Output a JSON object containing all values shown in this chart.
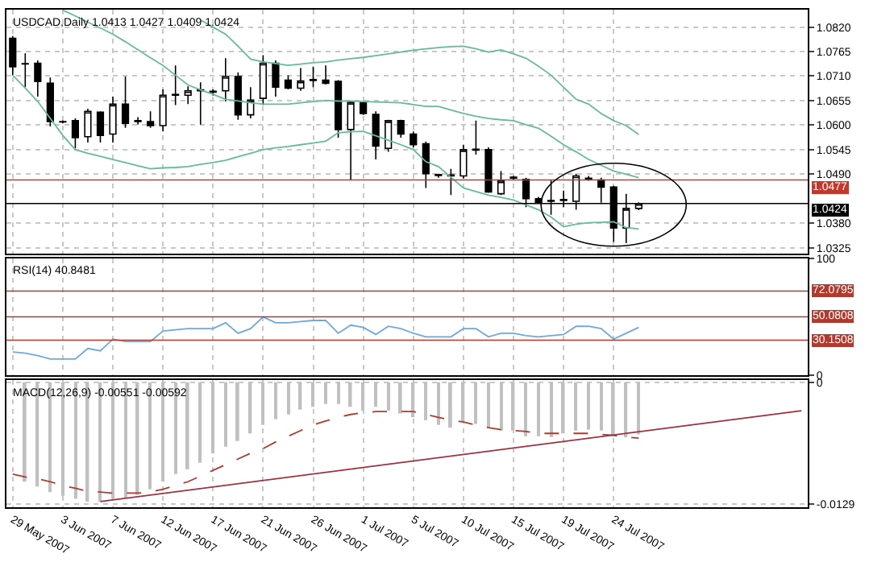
{
  "chart_data": [
    {
      "type": "candlestick",
      "title": "USDCAD,Daily 1.0413 1.0427 1.0409 1.0424",
      "categories": [
        null,
        null,
        null,
        null,
        null,
        null,
        null,
        null,
        null,
        null,
        null,
        null,
        null,
        null,
        null,
        null,
        null,
        null,
        null,
        null,
        null,
        null,
        null,
        null,
        null,
        null,
        null,
        null,
        null,
        null,
        null,
        null,
        null,
        null,
        null,
        null,
        null,
        null,
        null,
        null,
        null,
        null,
        null,
        null,
        null,
        null,
        null,
        null,
        null,
        null,
        null,
        null,
        null,
        null,
        null,
        null,
        null,
        null,
        null,
        null,
        null,
        null,
        null,
        null
      ],
      "ohlc": [
        [
          1.0795,
          1.08,
          1.0712,
          1.0731
        ],
        [
          1.0737,
          1.0761,
          1.0685,
          1.0738
        ],
        [
          1.0739,
          1.0745,
          1.0664,
          1.0698
        ],
        [
          1.0694,
          1.0707,
          1.0597,
          1.0608
        ],
        [
          1.0608,
          1.061,
          1.0604,
          1.0607
        ],
        [
          1.061,
          1.0615,
          1.0548,
          1.0572
        ],
        [
          1.0574,
          1.0637,
          1.0561,
          1.0631
        ],
        [
          1.0629,
          1.0631,
          1.0561,
          1.0577
        ],
        [
          1.058,
          1.0664,
          1.0561,
          1.0647
        ],
        [
          1.0647,
          1.0709,
          1.0594,
          1.0604
        ],
        [
          1.061,
          1.0618,
          1.0601,
          1.0608
        ],
        [
          1.0608,
          1.0631,
          1.0594,
          1.0599
        ],
        [
          1.0599,
          1.068,
          1.0586,
          1.0667
        ],
        [
          1.0667,
          1.0734,
          1.0645,
          1.0669
        ],
        [
          1.0667,
          1.0687,
          1.0647,
          1.0677
        ],
        [
          1.0677,
          1.0696,
          1.0601,
          1.0679
        ],
        [
          1.0674,
          1.068,
          1.0666,
          1.0676
        ],
        [
          1.0677,
          1.075,
          1.0653,
          1.0709
        ],
        [
          1.0709,
          1.0718,
          1.0612,
          1.0623
        ],
        [
          1.0623,
          1.0685,
          1.0615,
          1.0656
        ],
        [
          1.066,
          1.0757,
          1.0645,
          1.0739
        ],
        [
          1.0739,
          1.0745,
          1.0664,
          1.0685
        ],
        [
          1.0701,
          1.0712,
          1.068,
          1.0683
        ],
        [
          1.0683,
          1.0728,
          1.0677,
          1.0699
        ],
        [
          1.07,
          1.0731,
          1.0685,
          1.0702
        ],
        [
          1.0701,
          1.0734,
          1.0691,
          1.0694
        ],
        [
          1.0698,
          1.0701,
          1.0572,
          1.059
        ],
        [
          1.059,
          1.0655,
          1.0478,
          1.0651
        ],
        [
          1.065,
          1.0653,
          1.0623,
          1.0626
        ],
        [
          1.0624,
          1.0631,
          1.0523,
          1.0553
        ],
        [
          1.0548,
          1.0612,
          1.054,
          1.061
        ],
        [
          1.061,
          1.0612,
          1.0572,
          1.058
        ],
        [
          1.058,
          1.0586,
          1.055,
          1.0556
        ],
        [
          1.0558,
          1.0563,
          1.0459,
          1.0491
        ],
        [
          1.0487,
          1.0491,
          1.0482,
          1.0489
        ],
        [
          1.0486,
          1.0502,
          1.0443,
          1.0488
        ],
        [
          1.0486,
          1.0556,
          1.048,
          1.0545
        ],
        [
          1.0546,
          1.061,
          1.0534,
          1.0544
        ],
        [
          1.0545,
          1.055,
          1.0448,
          1.045
        ],
        [
          1.0446,
          1.0497,
          1.0443,
          1.0475
        ],
        [
          1.0481,
          1.0486,
          1.0478,
          1.0483
        ],
        [
          1.0478,
          1.0482,
          1.0416,
          1.0435
        ],
        [
          1.0435,
          1.0439,
          1.0424,
          1.0426
        ],
        [
          1.0431,
          1.0478,
          1.0399,
          1.0429
        ],
        [
          1.0431,
          1.0453,
          1.0416,
          1.0433
        ],
        [
          1.0429,
          1.0491,
          1.041,
          1.0486
        ],
        [
          1.0481,
          1.0486,
          1.0475,
          1.0479
        ],
        [
          1.0477,
          1.0482,
          1.0426,
          1.0461
        ],
        [
          1.0461,
          1.0464,
          1.0338,
          1.0369
        ],
        [
          1.0369,
          1.0446,
          1.0335,
          1.0413
        ],
        [
          1.0413,
          1.0427,
          1.0409,
          1.0424
        ],
        null,
        null,
        null,
        null,
        null,
        null,
        null,
        null,
        null,
        null,
        null,
        null,
        null
      ],
      "series": [
        {
          "type": "line",
          "color": "#66bb99",
          "values": [
            null,
            null,
            null,
            null,
            null,
            null,
            null,
            null,
            null,
            null,
            null,
            null,
            null,
            null,
            null,
            1.0836,
            1.082,
            1.0804,
            1.0777,
            1.0748,
            1.0742,
            1.0738,
            1.0734,
            1.0737,
            1.074,
            1.0742,
            1.0746,
            1.0749,
            1.0752,
            1.0756,
            1.076,
            1.0764,
            1.0768,
            1.0771,
            1.0774,
            1.0776,
            1.0777,
            1.0771,
            1.0764,
            1.0769,
            1.076,
            1.075,
            1.0732,
            1.0712,
            1.0685,
            1.0658,
            1.0647,
            1.0626,
            1.061,
            1.0599,
            1.0579,
            null,
            null,
            null,
            null,
            null,
            null,
            null,
            null,
            null,
            null,
            null,
            null,
            null
          ]
        },
        {
          "type": "line",
          "color": "#66bb99",
          "values": [
            null,
            null,
            null,
            null,
            1.0858,
            1.0845,
            1.0831,
            1.0818,
            1.0804,
            1.0787,
            1.0769,
            1.0751,
            1.0734,
            1.0712,
            1.069,
            1.0679,
            1.0669,
            1.0658,
            1.0654,
            1.065,
            1.0647,
            1.0647,
            1.0647,
            1.065,
            1.0653,
            1.0655,
            1.0654,
            1.0654,
            1.0653,
            1.0652,
            1.0651,
            1.065,
            1.0646,
            1.0642,
            1.0642,
            1.0634,
            1.0626,
            1.062,
            1.0615,
            1.0612,
            1.061,
            1.0601,
            1.0593,
            1.0575,
            1.0556,
            1.054,
            1.0523,
            1.051,
            1.0497,
            1.049,
            1.0482,
            null,
            null,
            null,
            null,
            null,
            null,
            null,
            null,
            null,
            null,
            null,
            null,
            null
          ]
        },
        {
          "type": "line",
          "color": "#66bb99",
          "values": [
            1.0712,
            1.0683,
            1.0653,
            1.0615,
            1.0577,
            1.0545,
            1.0537,
            1.053,
            1.0523,
            1.0516,
            1.0509,
            1.0502,
            1.0504,
            1.0505,
            1.0507,
            1.0512,
            1.0516,
            1.0521,
            1.0529,
            1.0537,
            1.0545,
            1.0549,
            1.0552,
            1.0556,
            1.056,
            1.0564,
            1.0583,
            1.0585,
            1.0586,
            1.0576,
            1.0566,
            1.0556,
            1.0545,
            1.0518,
            1.0507,
            1.0483,
            1.0459,
            1.0451,
            1.0443,
            1.0438,
            1.0432,
            1.0421,
            1.041,
            1.0394,
            1.0372,
            1.0378,
            1.0381,
            1.0382,
            1.0383,
            1.037,
            1.0367,
            null,
            null,
            null,
            null,
            null,
            null,
            null,
            null,
            null,
            null,
            null,
            null,
            null
          ]
        }
      ],
      "ylim": [
        1.0312,
        1.0859
      ],
      "yticks": [
        {
          "value": 1.082,
          "label": "1.0820"
        },
        1.0765,
        {
          "value": 1.071,
          "label": "1.0710"
        },
        1.0655,
        {
          "value": 1.06,
          "label": "1.0600"
        },
        1.0545,
        {
          "value": 1.049,
          "label": "1.0490"
        },
        {
          "value": 1.038,
          "label": "1.0380"
        },
        1.0325
      ],
      "ref_lines": [
        {
          "axis": "y",
          "value": 1.0477,
          "label": "1.0477",
          "color": "#c0392b"
        },
        {
          "axis": "y",
          "value": 1.0424,
          "label": "1.0424",
          "color": "#000000"
        }
      ],
      "grid": true,
      "tick_labels": "y"
    },
    {
      "type": "line",
      "title": "RSI(14) 40.8481",
      "categories": [
        null,
        null,
        null,
        null,
        null,
        null,
        null,
        null,
        null,
        null,
        null,
        null,
        null,
        null,
        null,
        null,
        null,
        null,
        null,
        null,
        null,
        null,
        null,
        null,
        null,
        null,
        null,
        null,
        null,
        null,
        null,
        null,
        null,
        null,
        null,
        null,
        null,
        null,
        null,
        null,
        null,
        null,
        null,
        null,
        null,
        null,
        null,
        null,
        null,
        null,
        null,
        null,
        null,
        null,
        null,
        null,
        null,
        null,
        null,
        null,
        null,
        null,
        null,
        null
      ],
      "series": [
        {
          "color": "#6fa8dc",
          "values": [
            20,
            19,
            17,
            14,
            14,
            14,
            23,
            21,
            31,
            29,
            29,
            29,
            38,
            39,
            40,
            40,
            40,
            45,
            36,
            40,
            50,
            45,
            45,
            46,
            47,
            47,
            36,
            43,
            41,
            35,
            42,
            40,
            36,
            33,
            33,
            33,
            40,
            40,
            33,
            36,
            36,
            34,
            33,
            34,
            35,
            42,
            42,
            40,
            31,
            36,
            41,
            null,
            null,
            null,
            null,
            null,
            null,
            null,
            null,
            null,
            null,
            null,
            null,
            null
          ]
        }
      ],
      "ylim": [
        0,
        100
      ],
      "yticks": [
        0,
        100
      ],
      "ref_lines": [
        {
          "axis": "y",
          "value": 72.0795,
          "label": "72.0795",
          "color": "#b03a2e"
        },
        {
          "axis": "y",
          "value": 50.0808,
          "label": "50.0808",
          "color": "#b03a2e"
        },
        {
          "axis": "y",
          "value": 30.1508,
          "label": "30.1508",
          "color": "#b03a2e"
        }
      ],
      "grid": true,
      "tick_labels": "y"
    },
    {
      "type": "bar",
      "title": "MACD(12,26,9) -0.00551 -0.00592",
      "categories": [
        "29 May 2007",
        null,
        null,
        null,
        "3 Jun 2007",
        null,
        null,
        null,
        "7 Jun 2007",
        null,
        null,
        null,
        "12 Jun 2007",
        null,
        null,
        null,
        "17 Jun 2007",
        null,
        null,
        null,
        "21 Jun 2007",
        null,
        null,
        null,
        "26 Jun 2007",
        null,
        null,
        null,
        "1 Jul 2007",
        null,
        null,
        null,
        "5 Jul 2007",
        null,
        null,
        null,
        "10 Jul 2007",
        null,
        null,
        null,
        "15 Jul 2007",
        null,
        null,
        null,
        "19 Jul 2007",
        null,
        null,
        null,
        "24 Jul 2007",
        null,
        null,
        null,
        null,
        null,
        null,
        null,
        null,
        null,
        null,
        null,
        null,
        null,
        null,
        null
      ],
      "series": [
        {
          "type": "bar",
          "color": "#c0c0c0",
          "values": [
            null,
            -0.0105,
            -0.011,
            -0.0116,
            -0.012,
            -0.0123,
            -0.0126,
            -0.0126,
            -0.0123,
            -0.0122,
            -0.0119,
            -0.0113,
            -0.0105,
            -0.0097,
            -0.0092,
            -0.0085,
            -0.0075,
            -0.0068,
            -0.0062,
            -0.0054,
            -0.0045,
            -0.0039,
            -0.0034,
            -0.0029,
            -0.0026,
            -0.0023,
            -0.0023,
            -0.0026,
            -0.003,
            -0.0026,
            -0.003,
            -0.0033,
            -0.0037,
            -0.004,
            -0.0045,
            -0.0048,
            -0.0042,
            -0.0044,
            -0.0048,
            -0.0051,
            -0.0051,
            -0.0057,
            -0.0057,
            -0.0058,
            -0.0054,
            -0.0051,
            -0.005,
            -0.0051,
            -0.0057,
            -0.0058,
            -0.0055,
            null,
            null,
            null,
            null,
            null,
            null,
            null,
            null,
            null,
            null,
            null,
            null,
            null
          ]
        },
        {
          "type": "line",
          "color": "#b03a2e",
          "line_style": "dashed",
          "values": [
            -0.0097,
            -0.01,
            -0.0102,
            -0.0105,
            -0.0109,
            -0.0112,
            -0.0115,
            -0.0116,
            -0.0117,
            -0.0117,
            -0.0117,
            -0.0116,
            -0.0113,
            -0.0109,
            -0.0105,
            -0.0099,
            -0.0093,
            -0.0087,
            -0.0081,
            -0.0075,
            -0.007,
            -0.0063,
            -0.0057,
            -0.0051,
            -0.0045,
            -0.0041,
            -0.0037,
            -0.0034,
            -0.0032,
            -0.0031,
            -0.0031,
            -0.0031,
            -0.0031,
            -0.0034,
            -0.0037,
            -0.004,
            -0.0042,
            -0.0045,
            -0.0048,
            -0.005,
            -0.0051,
            -0.0052,
            -0.0054,
            -0.0054,
            -0.0054,
            -0.0054,
            -0.0054,
            -0.0055,
            -0.0056,
            -0.0058,
            -0.0059,
            null,
            null,
            null,
            null,
            null,
            null,
            null,
            null,
            null,
            null,
            null,
            null,
            null
          ]
        },
        {
          "type": "line",
          "color": "#a03040",
          "line_style": "solid",
          "values": [
            null,
            null,
            null,
            null,
            null,
            null,
            null,
            -0.0126,
            null,
            null,
            null,
            null,
            null,
            null,
            null,
            null,
            null,
            null,
            null,
            null,
            null,
            null,
            null,
            null,
            null,
            null,
            null,
            null,
            null,
            null,
            null,
            null,
            null,
            null,
            null,
            null,
            null,
            null,
            null,
            null,
            null,
            null,
            null,
            null,
            null,
            null,
            null,
            null,
            null,
            null,
            null,
            null,
            null,
            null,
            null,
            null,
            null,
            null,
            null,
            null,
            null,
            null,
            null,
            -0.003
          ]
        }
      ],
      "ylim": [
        -0.0132,
        0.0002
      ],
      "yticks": [
        0,
        -0.0129
      ],
      "grid": true
    }
  ]
}
